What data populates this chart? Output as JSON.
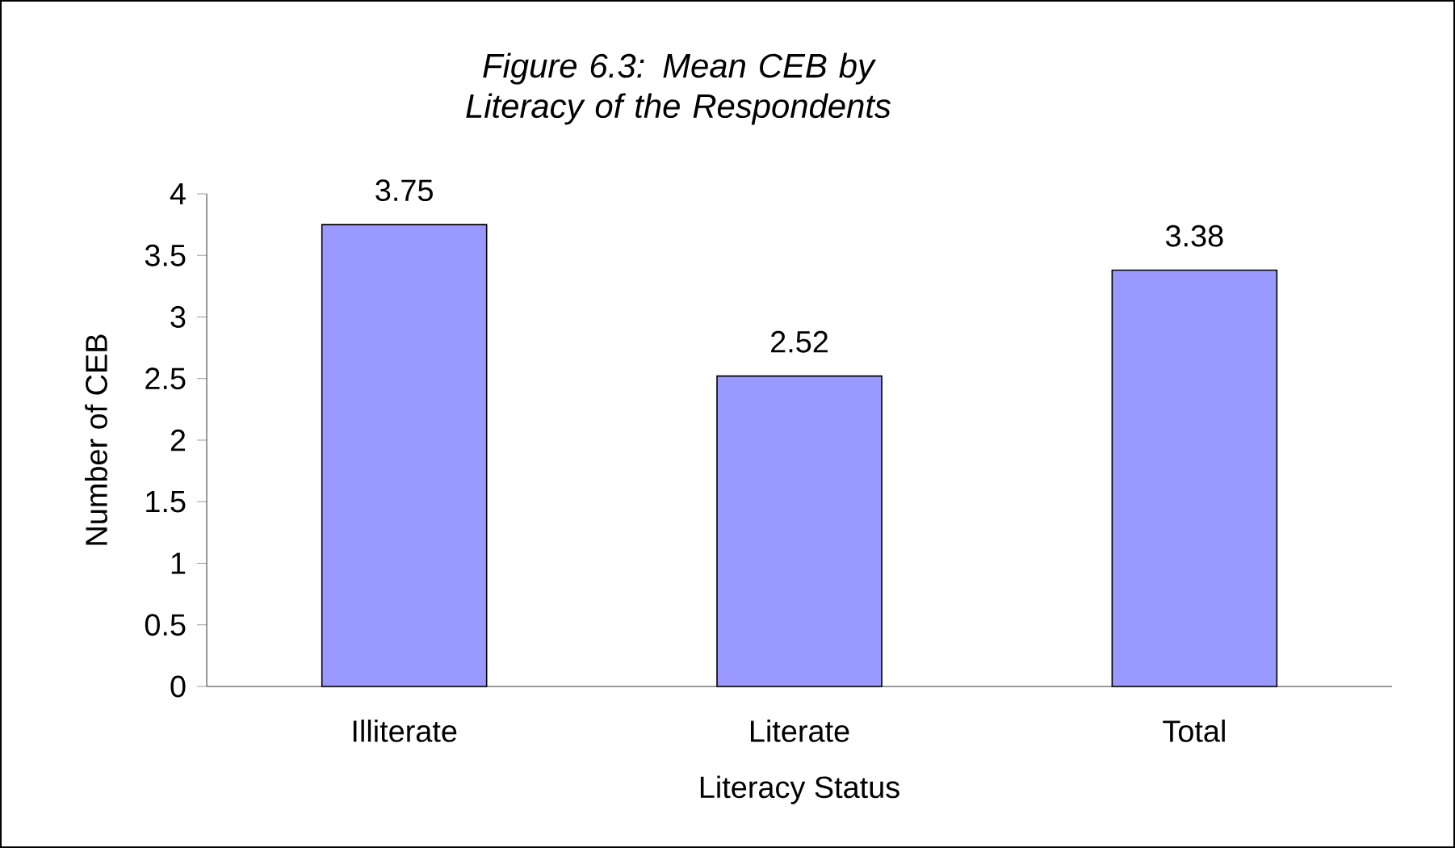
{
  "chart_data": {
    "type": "bar",
    "title": "Figure 6.3: Mean CEB by Literacy of the Respondents",
    "xlabel": "Literacy Status",
    "ylabel": "Number of CEB",
    "categories": [
      "Illiterate",
      "Literate",
      "Total"
    ],
    "values": [
      3.75,
      2.52,
      3.38
    ],
    "color": "#9999ff",
    "data_labels": true,
    "ylim": [
      0,
      4
    ],
    "yticks": [
      0,
      0.5,
      1,
      1.5,
      2,
      2.5,
      3,
      3.5,
      4
    ],
    "grid": false
  }
}
